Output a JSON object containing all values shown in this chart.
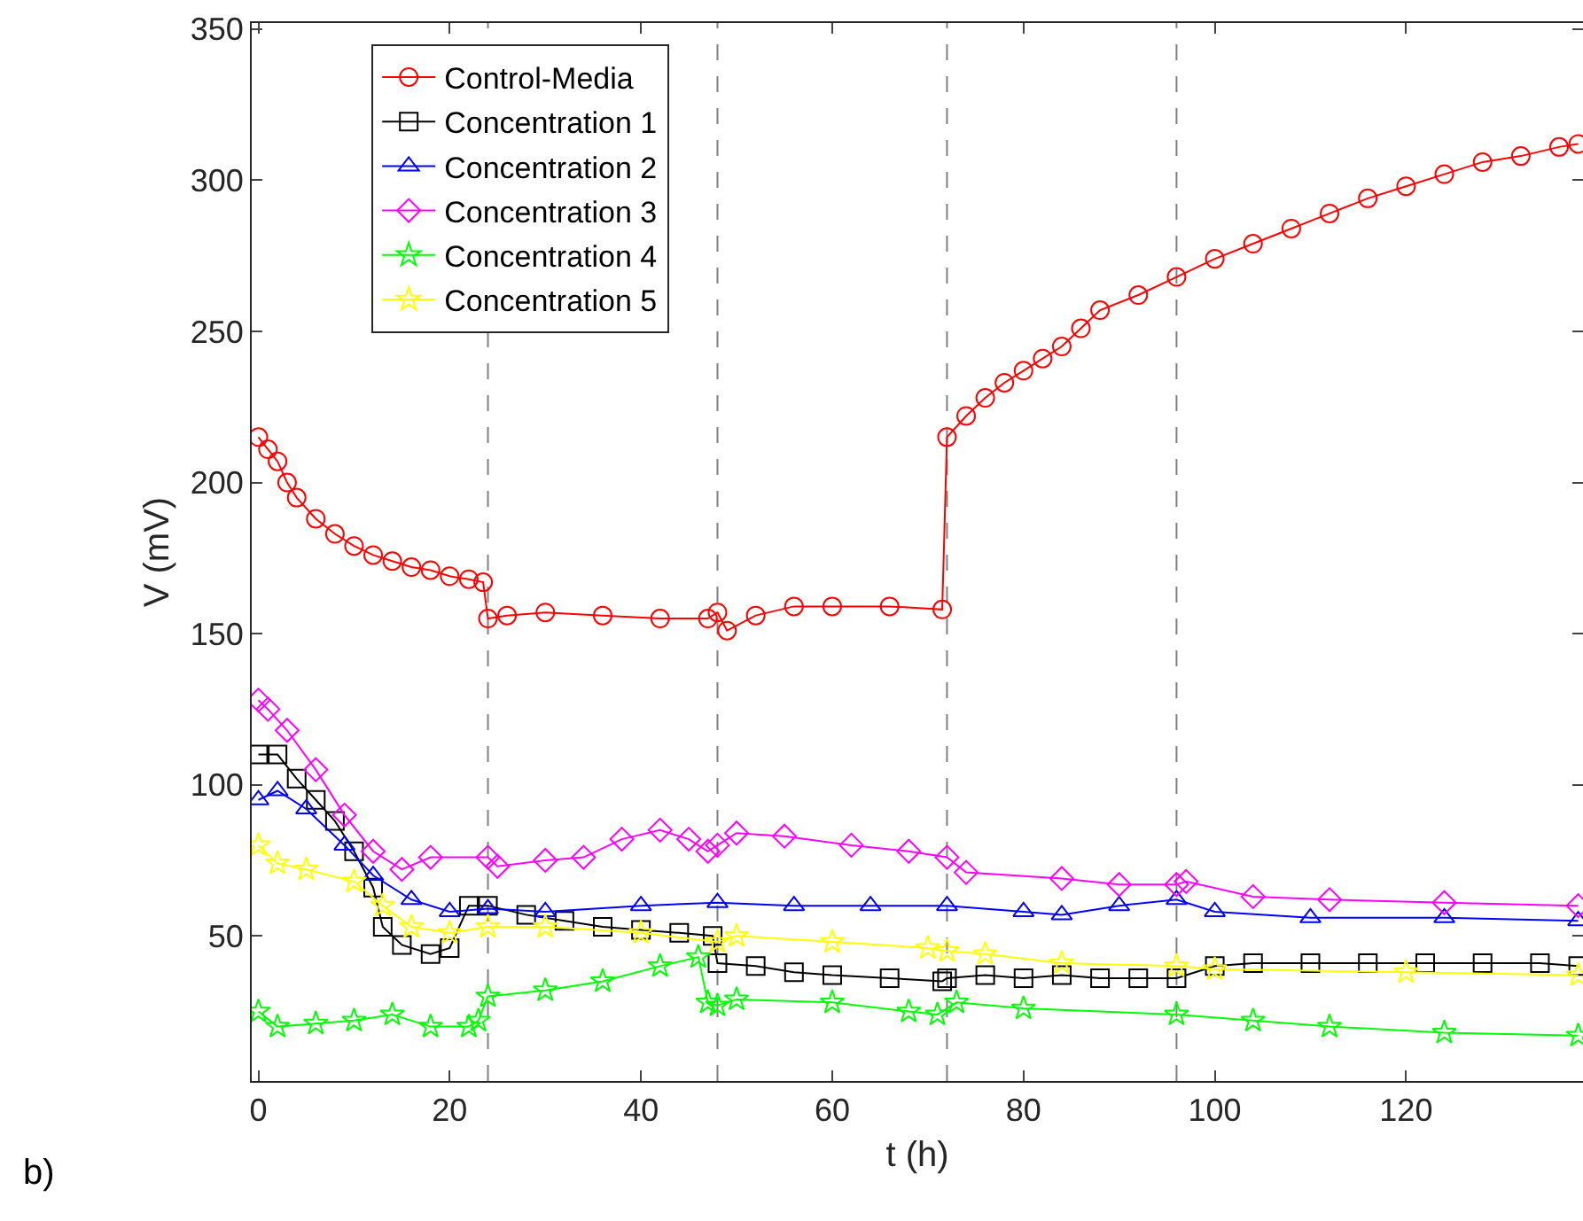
{
  "chart_data": {
    "type": "line",
    "xlabel": "t (h)",
    "ylabel": "V (mV)",
    "xlim": [
      -0.7,
      138.5
    ],
    "ylim": [
      2,
      352
    ],
    "xticks": [
      0,
      20,
      40,
      60,
      80,
      100,
      120
    ],
    "yticks": [
      50,
      100,
      150,
      200,
      250,
      300,
      350
    ],
    "grid": false,
    "legend": "top left",
    "line_style": "solid",
    "annotations": [
      "b)"
    ],
    "ref_lines": [
      {
        "axis": "x",
        "value": 24,
        "color": "#808080",
        "line_style": "dashed"
      },
      {
        "axis": "x",
        "value": 48,
        "color": "#808080",
        "line_style": "dashed"
      },
      {
        "axis": "x",
        "value": 72,
        "color": "#808080",
        "line_style": "dashed"
      },
      {
        "axis": "x",
        "value": 96,
        "color": "#808080",
        "line_style": "dashed"
      }
    ],
    "series": [
      {
        "name": "Control-Media",
        "color": "#ff0000",
        "marker": "circle",
        "x": [
          0,
          1,
          2,
          3,
          4,
          6,
          8,
          10,
          12,
          14,
          16,
          18,
          20,
          22,
          23.5,
          24,
          26,
          30,
          36,
          42,
          47,
          48,
          49,
          52,
          56,
          60,
          66,
          71.5,
          72,
          74,
          76,
          78,
          80,
          82,
          84,
          86,
          88,
          92,
          96,
          100,
          104,
          108,
          112,
          116,
          120,
          124,
          128,
          132,
          136,
          138
        ],
        "values": [
          215,
          211,
          207,
          200,
          195,
          188,
          183,
          179,
          176,
          174,
          172,
          171,
          169,
          168,
          167,
          155,
          156,
          157,
          156,
          155,
          155,
          157,
          151,
          156,
          159,
          159,
          159,
          158,
          215,
          222,
          228,
          233,
          237,
          241,
          245,
          251,
          257,
          262,
          268,
          274,
          279,
          284,
          289,
          294,
          298,
          302,
          306,
          308,
          311,
          312
        ]
      },
      {
        "name": "Concentration 1",
        "color": "#000000",
        "marker": "square",
        "x": [
          0,
          2,
          4,
          6,
          8,
          10,
          12,
          13,
          15,
          18,
          20,
          22,
          24,
          28,
          32,
          36,
          40,
          44,
          47.5,
          48,
          52,
          56,
          60,
          66,
          71.5,
          72,
          76,
          80,
          84,
          88,
          92,
          96,
          100,
          104,
          110,
          116,
          122,
          128,
          134,
          138
        ],
        "values": [
          110,
          110,
          102,
          95,
          88,
          78,
          66,
          53,
          47,
          44,
          46,
          60,
          60,
          57,
          55,
          53,
          52,
          51,
          50,
          41,
          40,
          38,
          37,
          36,
          35,
          36,
          37,
          36,
          37,
          36,
          36,
          36,
          40,
          41,
          41,
          41,
          41,
          41,
          41,
          40
        ]
      },
      {
        "name": "Concentration 2",
        "color": "#0000ff",
        "marker": "triangle",
        "x": [
          0,
          2,
          5,
          9,
          12,
          16,
          20,
          24,
          30,
          40,
          48,
          56,
          64,
          72,
          80,
          84,
          90,
          96,
          100,
          110,
          124,
          138
        ],
        "values": [
          95,
          98,
          92,
          80,
          70,
          62,
          58,
          59,
          58,
          60,
          61,
          60,
          60,
          60,
          58,
          57,
          60,
          62,
          58,
          56,
          56,
          55
        ]
      },
      {
        "name": "Concentration 3",
        "color": "#ff00ff",
        "marker": "diamond",
        "x": [
          0,
          1,
          3,
          6,
          9,
          12,
          15,
          18,
          24,
          25,
          30,
          34,
          38,
          42,
          45,
          47,
          48,
          50,
          55,
          62,
          68,
          72,
          74,
          84,
          90,
          96,
          97,
          104,
          112,
          124,
          138
        ],
        "values": [
          128,
          125,
          118,
          105,
          90,
          78,
          72,
          76,
          76,
          73,
          75,
          76,
          82,
          85,
          82,
          78,
          80,
          84,
          83,
          80,
          78,
          76,
          71,
          69,
          67,
          67,
          68,
          63,
          62,
          61,
          60
        ]
      },
      {
        "name": "Concentration 4",
        "color": "#00ff00",
        "marker": "star",
        "x": [
          0,
          2,
          6,
          10,
          14,
          18,
          22,
          23,
          24,
          30,
          36,
          42,
          46,
          47,
          48,
          50,
          60,
          68,
          71,
          73,
          80,
          96,
          104,
          112,
          124,
          138
        ],
        "values": [
          25,
          20,
          21,
          22,
          24,
          20,
          20,
          22,
          30,
          32,
          35,
          40,
          43,
          28,
          27,
          29,
          28,
          25,
          24,
          28,
          26,
          24,
          22,
          20,
          18,
          17
        ]
      },
      {
        "name": "Concentration 5",
        "color": "#ffff00",
        "marker": "star",
        "x": [
          0,
          2,
          5,
          10,
          13,
          16,
          20,
          24,
          30,
          40,
          48,
          50,
          60,
          70,
          72,
          76,
          84,
          96,
          100,
          120,
          138
        ],
        "values": [
          80,
          74,
          72,
          68,
          60,
          53,
          51,
          53,
          53,
          51,
          48,
          50,
          48,
          46,
          45,
          44,
          41,
          40,
          39,
          38,
          37
        ]
      }
    ]
  }
}
